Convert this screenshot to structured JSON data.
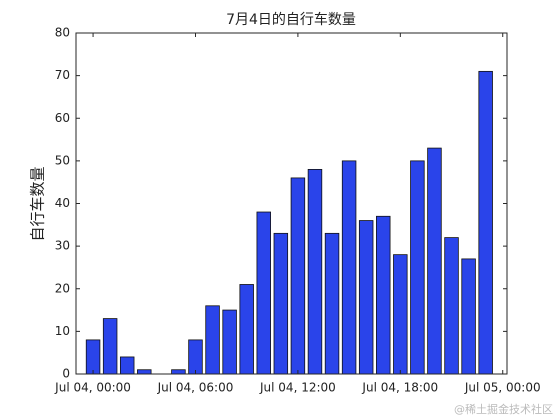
{
  "chart_data": {
    "type": "bar",
    "title": "7月4日的自行车数量",
    "y_label": "自行车数量",
    "x": [
      0,
      1,
      2,
      3,
      4,
      5,
      6,
      7,
      8,
      9,
      10,
      11,
      12,
      13,
      14,
      15,
      16,
      17,
      18,
      19,
      20,
      21,
      22,
      23
    ],
    "values": [
      8,
      13,
      4,
      1,
      0,
      1,
      8,
      16,
      15,
      21,
      38,
      33,
      46,
      48,
      33,
      50,
      36,
      37,
      28,
      50,
      53,
      32,
      27,
      71
    ],
    "color": "#2a44ea",
    "xlim": [
      -1,
      24.25
    ],
    "xticks": [
      {
        "value": 0,
        "label": "Jul 04, 00:00"
      },
      {
        "value": 6,
        "label": "Jul 04, 06:00"
      },
      {
        "value": 12,
        "label": "Jul 04, 12:00"
      },
      {
        "value": 18,
        "label": "Jul 04, 18:00"
      },
      {
        "value": 24,
        "label": "Jul 05, 00:00"
      }
    ],
    "ylim": [
      0,
      80
    ],
    "yticks": [
      0,
      10,
      20,
      30,
      40,
      50,
      60,
      70,
      80
    ],
    "watermark": "@稀土掘金技术社区"
  }
}
